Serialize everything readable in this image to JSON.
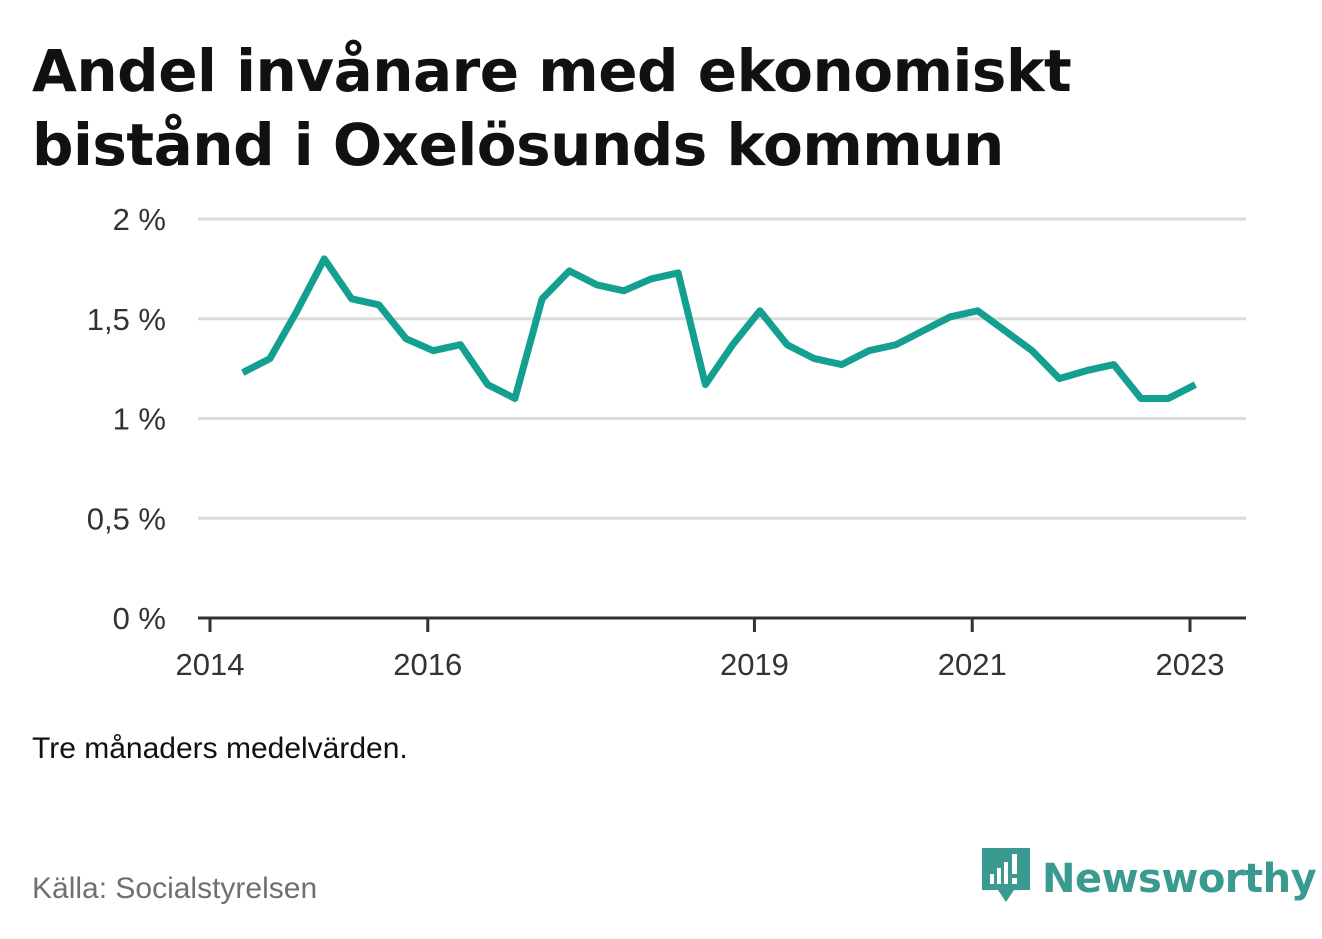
{
  "title": "Andel invånare med ekonomiskt bistånd i Oxelösunds kommun",
  "note": "Tre månaders medelvärden.",
  "source": "Källa: Socialstyrelsen",
  "brand": {
    "name": "Newsworthy",
    "icon": "newsworthy-logo-icon",
    "color": "#3a9a90"
  },
  "chart_data": {
    "type": "line",
    "ylim": [
      0,
      2
    ],
    "y_ticks": [
      0,
      0.5,
      1,
      1.5,
      2
    ],
    "y_tick_labels": [
      "0 %",
      "0,5 %",
      "1 %",
      "1,5 %",
      "2 %"
    ],
    "x_ticks": [
      2014,
      2016,
      2019,
      2021,
      2023
    ],
    "x_tick_labels": [
      "2014",
      "2016",
      "2019",
      "2021",
      "2023"
    ],
    "grid": true,
    "line_color": "#14a091",
    "series": [
      {
        "x": [
          2014.3,
          2014.55,
          2014.8,
          2015.05,
          2015.3,
          2015.55,
          2015.8,
          2016.05,
          2016.3,
          2016.55,
          2016.8,
          2017.05,
          2017.3,
          2017.55,
          2017.8,
          2018.05,
          2018.3,
          2018.55,
          2018.8,
          2019.05,
          2019.3,
          2019.55,
          2019.8,
          2020.05,
          2020.3,
          2020.55,
          2020.8,
          2021.05,
          2021.3,
          2021.55,
          2021.8,
          2022.05,
          2022.3,
          2022.55,
          2022.8,
          2023.05
        ],
        "values": [
          1.23,
          1.3,
          1.54,
          1.8,
          1.6,
          1.57,
          1.4,
          1.34,
          1.37,
          1.17,
          1.1,
          1.6,
          1.74,
          1.67,
          1.64,
          1.7,
          1.73,
          1.17,
          1.37,
          1.54,
          1.37,
          1.3,
          1.27,
          1.34,
          1.37,
          1.44,
          1.51,
          1.54,
          1.44,
          1.34,
          1.2,
          1.24,
          1.27,
          1.1,
          1.1,
          1.17
        ]
      }
    ]
  }
}
